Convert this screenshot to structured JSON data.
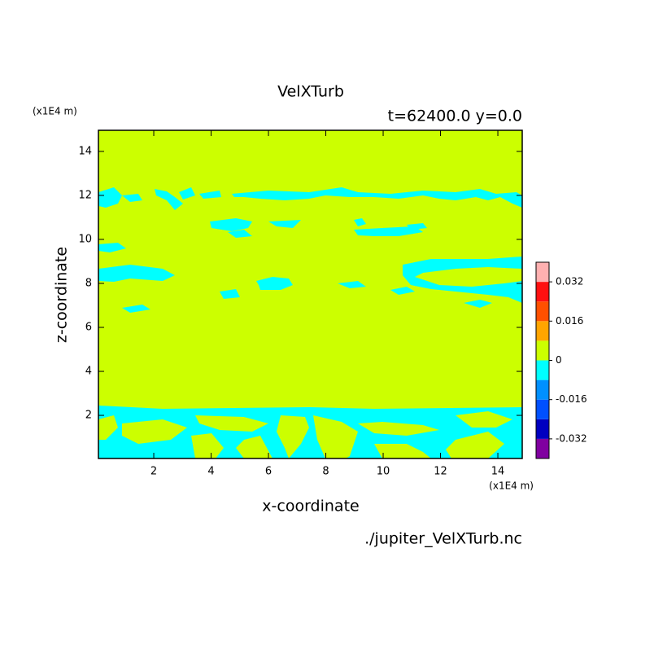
{
  "chart_data": {
    "type": "contour",
    "title": "VelXTurb",
    "subtitle": "t=62400.0 y=0.0",
    "x_label": "x-coordinate",
    "y_label": "z-coordinate",
    "x_unit": "(x1E4 m)",
    "y_unit": "(x1E4 m)",
    "source": "./jupiter_VelXTurb.nc",
    "xlim": [
      0.07,
      14.85
    ],
    "ylim": [
      0.04,
      14.96
    ],
    "xticks": [
      2,
      4,
      6,
      8,
      10,
      12,
      14
    ],
    "yticks": [
      2,
      4,
      6,
      8,
      10,
      12,
      14
    ],
    "colorbar": {
      "bounds": [
        -0.04,
        -0.032,
        -0.024,
        -0.016,
        -0.008,
        0,
        0.008,
        0.016,
        0.024,
        0.032,
        0.04
      ],
      "colors": [
        "#8000a0",
        "#0000c0",
        "#0050ff",
        "#0090ff",
        "#00ffff",
        "#ccff00",
        "#ffa500",
        "#ff5000",
        "#ff1010",
        "#ffb0b0"
      ],
      "ticks": [
        -0.032,
        -0.016,
        0,
        0.016,
        0.032
      ]
    }
  }
}
